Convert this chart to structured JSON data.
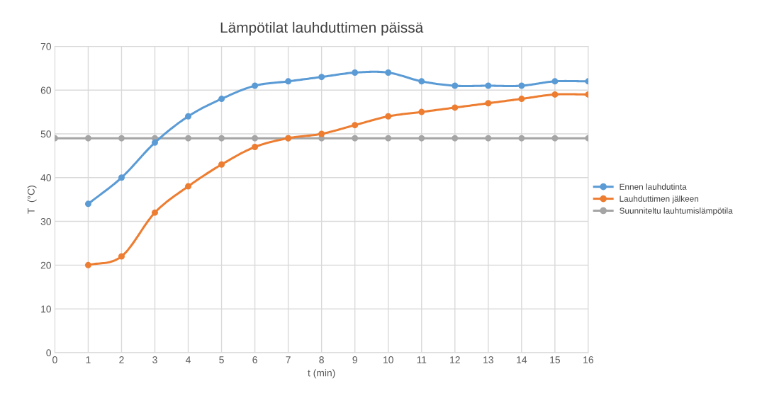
{
  "chart_data": {
    "type": "line",
    "title": "Lämpötilat lauhduttimen päissä",
    "xlabel": "t (min)",
    "ylabel": "T  (°C)",
    "xlim": [
      0,
      16
    ],
    "xticks": [
      0,
      1,
      2,
      3,
      4,
      5,
      6,
      7,
      8,
      9,
      10,
      11,
      12,
      13,
      14,
      15,
      16
    ],
    "ylim": [
      0,
      70
    ],
    "yticks": [
      0,
      10,
      20,
      30,
      40,
      50,
      60,
      70
    ],
    "grid": true,
    "legend": "right",
    "marker": "circle",
    "line_style": "solid",
    "series": [
      {
        "name": "Ennen lauhdutinta",
        "color": "#5b9bd5",
        "x": [
          1,
          2,
          3,
          4,
          5,
          6,
          7,
          8,
          9,
          10,
          11,
          12,
          13,
          14,
          15,
          16
        ],
        "values": [
          34,
          40,
          48,
          54,
          58,
          61,
          62,
          63,
          64,
          64,
          62,
          61,
          61,
          61,
          62,
          62
        ]
      },
      {
        "name": "Lauhduttimen jälkeen",
        "color": "#ed7d31",
        "x": [
          1,
          2,
          3,
          4,
          5,
          6,
          7,
          8,
          9,
          10,
          11,
          12,
          13,
          14,
          15,
          16
        ],
        "values": [
          20,
          22,
          32,
          38,
          43,
          47,
          49,
          50,
          52,
          54,
          55,
          56,
          57,
          58,
          59,
          59
        ]
      },
      {
        "name": "Suunniteltu lauhtumislämpötila",
        "color": "#a5a5a5",
        "x": [
          0,
          1,
          2,
          3,
          4,
          5,
          6,
          7,
          8,
          9,
          10,
          11,
          12,
          13,
          14,
          15,
          16
        ],
        "values": [
          49,
          49,
          49,
          49,
          49,
          49,
          49,
          49,
          49,
          49,
          49,
          49,
          49,
          49,
          49,
          49,
          49
        ]
      }
    ]
  }
}
